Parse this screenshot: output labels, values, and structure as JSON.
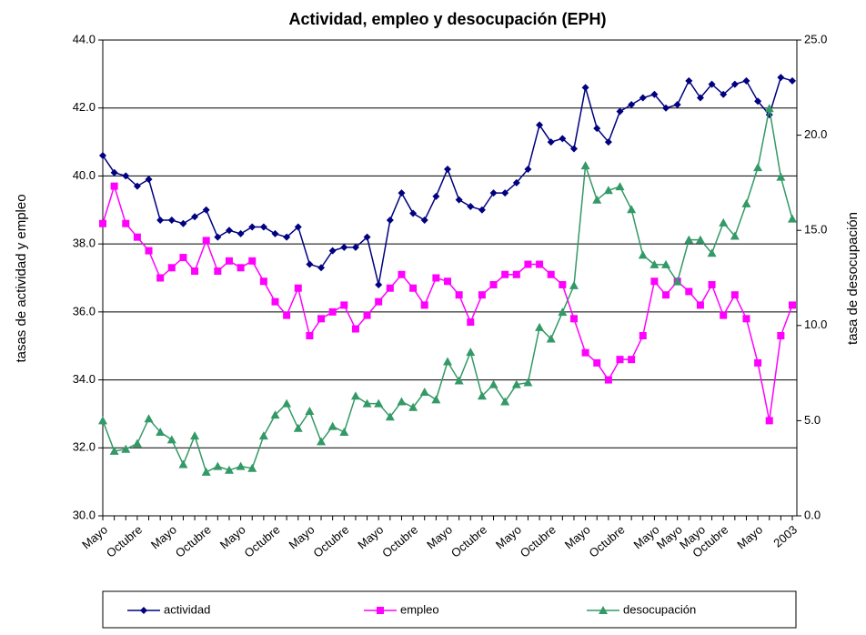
{
  "chart_data": {
    "type": "line",
    "title": "Actividad, empleo y desocupación (EPH)",
    "y_label": "tasas de actividad y empleo",
    "y2_label": "tasa de desocupación",
    "categories": [
      "Mayo",
      null,
      null,
      "Octubre",
      null,
      null,
      "Mayo",
      null,
      null,
      "Octubre",
      null,
      null,
      "Mayo",
      null,
      null,
      "Octubre",
      null,
      null,
      "Mayo",
      null,
      null,
      "Octubre",
      null,
      null,
      "Mayo",
      null,
      null,
      "Octubre",
      null,
      null,
      "Mayo",
      null,
      null,
      "Octubre",
      null,
      null,
      "Mayo",
      null,
      null,
      "Octubre",
      null,
      null,
      "Mayo",
      null,
      null,
      "Octubre",
      null,
      null,
      "Mayo",
      null,
      "Mayo",
      null,
      "Mayo",
      null,
      "Octubre",
      null,
      null,
      "Mayo",
      null,
      null,
      "2003"
    ],
    "series": [
      {
        "name": "actividad",
        "color": "#000080",
        "marker": "diamond",
        "values": [
          40.6,
          40.1,
          40.0,
          39.7,
          39.9,
          38.7,
          38.7,
          38.6,
          38.8,
          39.0,
          38.2,
          38.4,
          38.3,
          38.5,
          38.5,
          38.3,
          38.2,
          38.5,
          37.4,
          37.3,
          37.8,
          37.9,
          37.9,
          38.2,
          36.8,
          38.7,
          39.5,
          38.9,
          38.7,
          39.4,
          40.2,
          39.3,
          39.1,
          39.0,
          39.5,
          39.5,
          39.8,
          40.2,
          41.5,
          41.0,
          41.1,
          40.8,
          42.6,
          41.4,
          41.0,
          41.9,
          42.1,
          42.3,
          42.4,
          42.0,
          42.1,
          42.8,
          42.3,
          42.7,
          42.4,
          42.7,
          42.8,
          42.2,
          41.8,
          42.9,
          42.8
        ]
      },
      {
        "name": "empleo",
        "color": "#ff00ff",
        "marker": "square",
        "values": [
          38.6,
          39.7,
          38.6,
          38.2,
          37.8,
          37.0,
          37.3,
          37.6,
          37.2,
          38.1,
          37.2,
          37.5,
          37.3,
          37.5,
          36.9,
          36.3,
          35.9,
          36.7,
          35.3,
          35.8,
          36.0,
          36.2,
          35.5,
          35.9,
          36.3,
          36.7,
          37.1,
          36.7,
          36.2,
          37.0,
          36.9,
          36.5,
          35.7,
          36.5,
          36.8,
          37.1,
          37.1,
          37.4,
          37.4,
          37.1,
          36.8,
          35.8,
          34.8,
          34.5,
          34.0,
          34.6,
          34.6,
          35.3,
          36.9,
          36.5,
          36.9,
          36.6,
          36.2,
          36.8,
          35.9,
          36.5,
          35.8,
          34.5,
          32.8,
          35.3,
          36.2
        ]
      },
      {
        "name": "desocupación",
        "color": "#339966",
        "marker": "triangle",
        "axis": "y2",
        "values": [
          5.0,
          3.4,
          3.5,
          3.8,
          5.1,
          4.4,
          4.0,
          2.7,
          4.2,
          2.3,
          2.6,
          2.4,
          2.6,
          2.5,
          4.2,
          5.3,
          5.9,
          4.6,
          5.5,
          3.9,
          4.7,
          4.4,
          6.3,
          5.9,
          5.9,
          5.2,
          6.0,
          5.7,
          6.5,
          6.1,
          8.1,
          7.1,
          8.6,
          6.3,
          6.9,
          6.0,
          6.9,
          7.0,
          9.9,
          9.3,
          10.7,
          12.1,
          18.4,
          16.6,
          17.1,
          17.3,
          16.1,
          13.7,
          13.2,
          13.2,
          12.3,
          14.5,
          14.5,
          13.8,
          15.4,
          14.7,
          16.4,
          18.3,
          21.4,
          17.8,
          15.6
        ]
      }
    ],
    "ylim": [
      30,
      44
    ],
    "yticks": [
      {
        "value": 30,
        "label": "30.0"
      },
      {
        "value": 32,
        "label": "32.0"
      },
      {
        "value": 34,
        "label": "34.0"
      },
      {
        "value": 36,
        "label": "36.0"
      },
      {
        "value": 38,
        "label": "38.0"
      },
      {
        "value": 40,
        "label": "40.0"
      },
      {
        "value": 42,
        "label": "42.0"
      },
      {
        "value": 44,
        "label": "44.0"
      }
    ],
    "y2lim": [
      0,
      25
    ],
    "y2ticks": [
      {
        "value": 0,
        "label": "0.0"
      },
      {
        "value": 5,
        "label": "5.0"
      },
      {
        "value": 10,
        "label": "10.0"
      },
      {
        "value": 15,
        "label": "15.0"
      },
      {
        "value": 20,
        "label": "20.0"
      },
      {
        "value": 25,
        "label": "25.0"
      }
    ],
    "grid": true,
    "legend": "bottom"
  }
}
